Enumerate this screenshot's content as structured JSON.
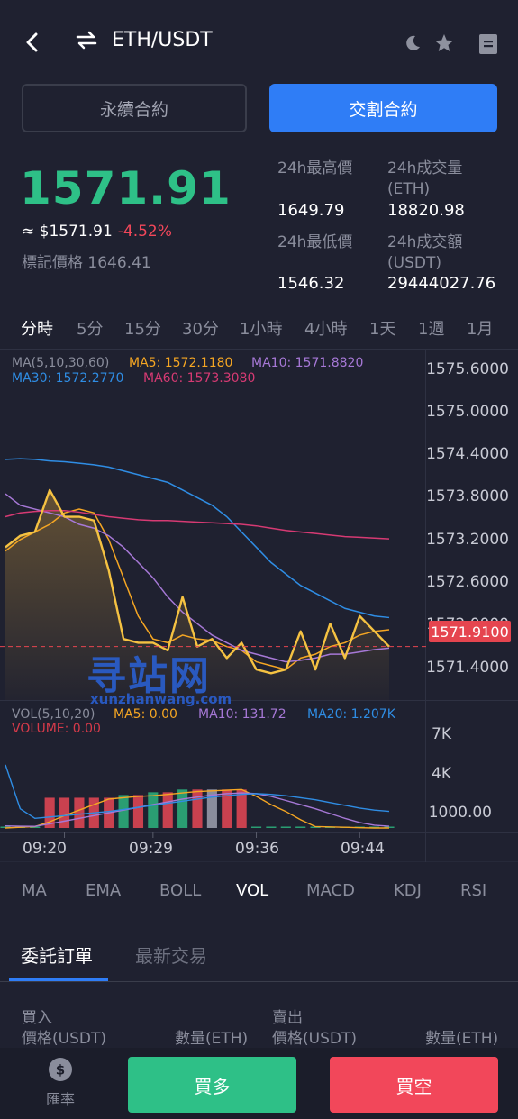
{
  "header": {
    "title": "ETH/USDT",
    "back_icon": "chevron-left-icon",
    "swap_icon": "swap-arrows-icon",
    "theme_icon": "moon-icon",
    "favorite_icon": "star-icon",
    "menu_icon": "document-menu-icon"
  },
  "contract_tabs": [
    "永續合約",
    "交割合約"
  ],
  "price": {
    "last": "1571.91",
    "approx_label": "≈ $1571.91",
    "change": "-4.52%",
    "mark_label": "標記價格 1646.41"
  },
  "stats": {
    "high_label": "24h最高價",
    "high_value": "1649.79",
    "volume_label_1": "24h成交量",
    "volume_label_2": "(ETH)",
    "volume_value": "18820.98",
    "low_label": "24h最低價",
    "low_value": "1546.32",
    "turnover_label_1": "24h成交額",
    "turnover_label_2": "(USDT)",
    "turnover_value": "29444027.76"
  },
  "timeframes": [
    "分時",
    "5分",
    "15分",
    "30分",
    "1小時",
    "4小時",
    "1天",
    "1週",
    "1月"
  ],
  "active_timeframe": "分時",
  "main_legend": {
    "params": "MA(5,10,30,60)",
    "ma5": "MA5: 1572.1180",
    "ma10": "MA10: 1571.8820",
    "ma30": "MA30: 1572.2770",
    "ma60": "MA60: 1573.3080"
  },
  "price_axis": [
    "1575.6000",
    "1575.0000",
    "1574.4000",
    "1573.8000",
    "1573.2000",
    "1572.6000",
    "1572.0000",
    "1571.4000"
  ],
  "current_price_tag": "1571.9100",
  "vol_legend": {
    "params": "VOL(5,10,20)",
    "ma5": "MA5: 0.00",
    "ma10": "MA10: 131.72",
    "ma20": "MA20: 1.207K",
    "volume": "VOLUME: 0.00"
  },
  "vol_axis": [
    "7K",
    "4K",
    "1000.00"
  ],
  "time_axis": [
    "09:20",
    "09:29",
    "09:36",
    "09:44"
  ],
  "indicator_tabs": [
    "MA",
    "EMA",
    "BOLL",
    "VOL",
    "MACD",
    "KDJ",
    "RSI"
  ],
  "active_indicator": "VOL",
  "order_tabs": [
    "委託訂單",
    "最新交易"
  ],
  "orderbook": {
    "buy_title": "買入",
    "buy_price_col": "價格(USDT)",
    "buy_qty_col": "數量(ETH)",
    "sell_title": "賣出",
    "sell_price_col": "價格(USDT)",
    "sell_qty_col": "數量(ETH)"
  },
  "bottom": {
    "rate_label": "匯率",
    "rate_icon": "dollar-coin-icon",
    "buy_long": "買多",
    "sell_short": "買空"
  },
  "watermark": {
    "main": "寻站网",
    "sub": "xunzhanwang.com"
  },
  "colors": {
    "up": "#2ec087",
    "down": "#f2475a",
    "accent": "#2f7df6",
    "ma5": "#f5a623",
    "ma10": "#a678d6",
    "ma30": "#2f8de4",
    "ma60": "#d63a73",
    "price_line": "#f5c242"
  },
  "chart_data": {
    "type": "line",
    "price_ylim": [
      1571.2,
      1575.8
    ],
    "time_line": [
      1573.2,
      1573.35,
      1573.4,
      1573.95,
      1573.6,
      1573.6,
      1573.55,
      1572.9,
      1572.0,
      1571.95,
      1571.95,
      1571.85,
      1572.55,
      1571.9,
      1572.0,
      1571.75,
      1571.95,
      1571.6,
      1571.55,
      1571.6,
      1572.1,
      1571.6,
      1572.2,
      1571.75,
      1572.3,
      1572.1,
      1571.9
    ],
    "ma_series": [
      {
        "name": "MA5",
        "values": [
          1573.15,
          1573.3,
          1573.4,
          1573.5,
          1573.65,
          1573.7,
          1573.65,
          1573.3,
          1572.8,
          1572.3,
          1572.0,
          1571.95,
          1572.05,
          1572.0,
          1571.98,
          1571.9,
          1571.85,
          1571.7,
          1571.65,
          1571.6,
          1571.75,
          1571.8,
          1571.9,
          1571.95,
          1572.05,
          1572.1,
          1572.12
        ]
      },
      {
        "name": "MA10",
        "values": [
          1573.9,
          1573.75,
          1573.7,
          1573.65,
          1573.6,
          1573.5,
          1573.45,
          1573.35,
          1573.2,
          1573.0,
          1572.8,
          1572.55,
          1572.35,
          1572.2,
          1572.05,
          1571.95,
          1571.85,
          1571.8,
          1571.75,
          1571.7,
          1571.72,
          1571.75,
          1571.8,
          1571.8,
          1571.83,
          1571.86,
          1571.88
        ]
      },
      {
        "name": "MA30",
        "values": [
          1574.35,
          1574.36,
          1574.35,
          1574.33,
          1574.32,
          1574.3,
          1574.28,
          1574.25,
          1574.2,
          1574.15,
          1574.1,
          1574.05,
          1573.95,
          1573.85,
          1573.75,
          1573.6,
          1573.4,
          1573.2,
          1573.0,
          1572.85,
          1572.7,
          1572.6,
          1572.5,
          1572.4,
          1572.35,
          1572.3,
          1572.28
        ]
      },
      {
        "name": "MA60",
        "values": [
          1573.6,
          1573.65,
          1573.67,
          1573.68,
          1573.68,
          1573.66,
          1573.63,
          1573.6,
          1573.58,
          1573.56,
          1573.55,
          1573.55,
          1573.54,
          1573.53,
          1573.52,
          1573.51,
          1573.5,
          1573.48,
          1573.45,
          1573.42,
          1573.4,
          1573.38,
          1573.36,
          1573.34,
          1573.33,
          1573.32,
          1573.31
        ]
      }
    ],
    "volume_ylim": [
      0,
      8000
    ],
    "volume": [
      0,
      0,
      0,
      2200,
      2200,
      2200,
      2200,
      2200,
      2400,
      2400,
      2600,
      2600,
      2800,
      2800,
      2800,
      2800,
      2800,
      0,
      100,
      100,
      100,
      0,
      0,
      0,
      0,
      0,
      0
    ],
    "volume_colors": [
      "up",
      "up",
      "up",
      "down",
      "down",
      "down",
      "down",
      "down",
      "up",
      "down",
      "up",
      "down",
      "up",
      "down",
      "flat",
      "down",
      "down",
      "up",
      "up",
      "up",
      "up",
      "up",
      "up",
      "up",
      "up",
      "up",
      "up"
    ],
    "vol_ma_series": [
      {
        "name": "MA5",
        "values": [
          0,
          50,
          100,
          450,
          900,
          1300,
          1700,
          2100,
          2200,
          2300,
          2350,
          2450,
          2550,
          2650,
          2700,
          2750,
          2800,
          2300,
          1700,
          1200,
          600,
          100,
          80,
          50,
          20,
          0,
          0
        ]
      },
      {
        "name": "MA10",
        "values": [
          150,
          130,
          120,
          300,
          500,
          700,
          900,
          1100,
          1300,
          1500,
          1700,
          1900,
          2100,
          2250,
          2400,
          2500,
          2550,
          2500,
          2300,
          2000,
          1700,
          1400,
          1050,
          700,
          400,
          200,
          130
        ]
      },
      {
        "name": "MA20",
        "values": [
          4600,
          1400,
          700,
          800,
          900,
          1000,
          1100,
          1200,
          1350,
          1500,
          1650,
          1800,
          1950,
          2100,
          2250,
          2350,
          2450,
          2500,
          2450,
          2350,
          2200,
          2050,
          1850,
          1650,
          1450,
          1300,
          1207
        ]
      }
    ],
    "x_tick_labels": [
      "09:20",
      "09:29",
      "09:36",
      "09:44"
    ]
  }
}
